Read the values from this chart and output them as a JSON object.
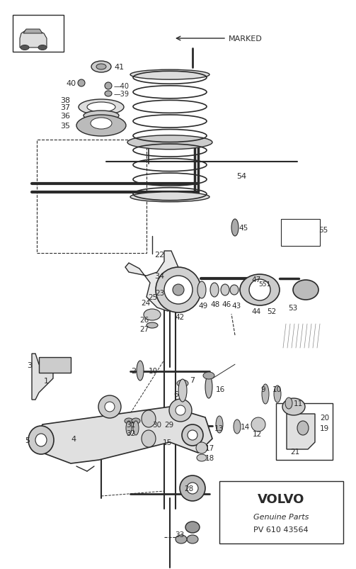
{
  "bg_color": "#ffffff",
  "line_color": "#2a2a2a",
  "volvo_text": "VOLVO",
  "genuine_parts": "Genuine Parts",
  "part_number": "PV 610 43564",
  "marked_label": "MARKED",
  "fig_w": 5.03,
  "fig_h": 8.04,
  "dpi": 100
}
